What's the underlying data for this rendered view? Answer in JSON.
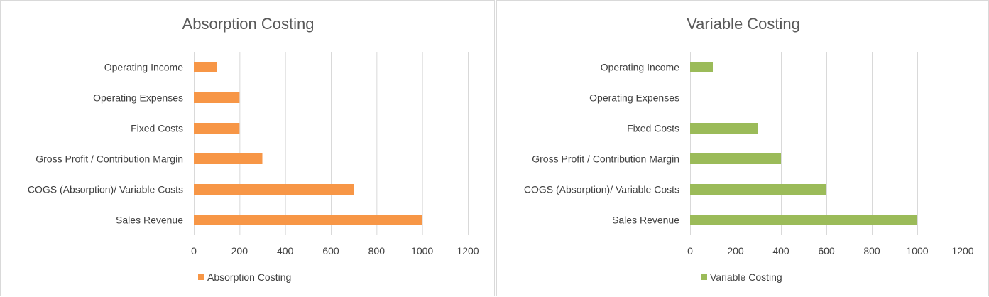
{
  "chart_data": [
    {
      "type": "bar",
      "orientation": "horizontal",
      "title": "Absorption Costing",
      "categories": [
        "Sales Revenue",
        "COGS (Absorption)/ Variable Costs",
        "Gross Profit / Contribution Margin",
        "Fixed Costs",
        "Operating Expenses",
        "Operating Income"
      ],
      "series": [
        {
          "name": "Absorption Costing",
          "color": "#F79646",
          "values": [
            1000,
            700,
            300,
            200,
            200,
            100
          ]
        }
      ],
      "x_ticks": [
        "0",
        "200",
        "400",
        "600",
        "800",
        "1000",
        "1200"
      ],
      "xlim": [
        0,
        1200
      ],
      "grid": true,
      "legend_position": "bottom"
    },
    {
      "type": "bar",
      "orientation": "horizontal",
      "title": "Variable Costing",
      "categories": [
        "Sales Revenue",
        "COGS (Absorption)/ Variable Costs",
        "Gross Profit / Contribution Margin",
        "Fixed Costs",
        "Operating Expenses",
        "Operating Income"
      ],
      "series": [
        {
          "name": "Variable Costing",
          "color": "#9BBB59",
          "values": [
            1000,
            600,
            400,
            300,
            0,
            100
          ]
        }
      ],
      "x_ticks": [
        "0",
        "200",
        "400",
        "600",
        "800",
        "1000",
        "1200"
      ],
      "xlim": [
        0,
        1200
      ],
      "grid": true,
      "legend_position": "bottom"
    }
  ]
}
